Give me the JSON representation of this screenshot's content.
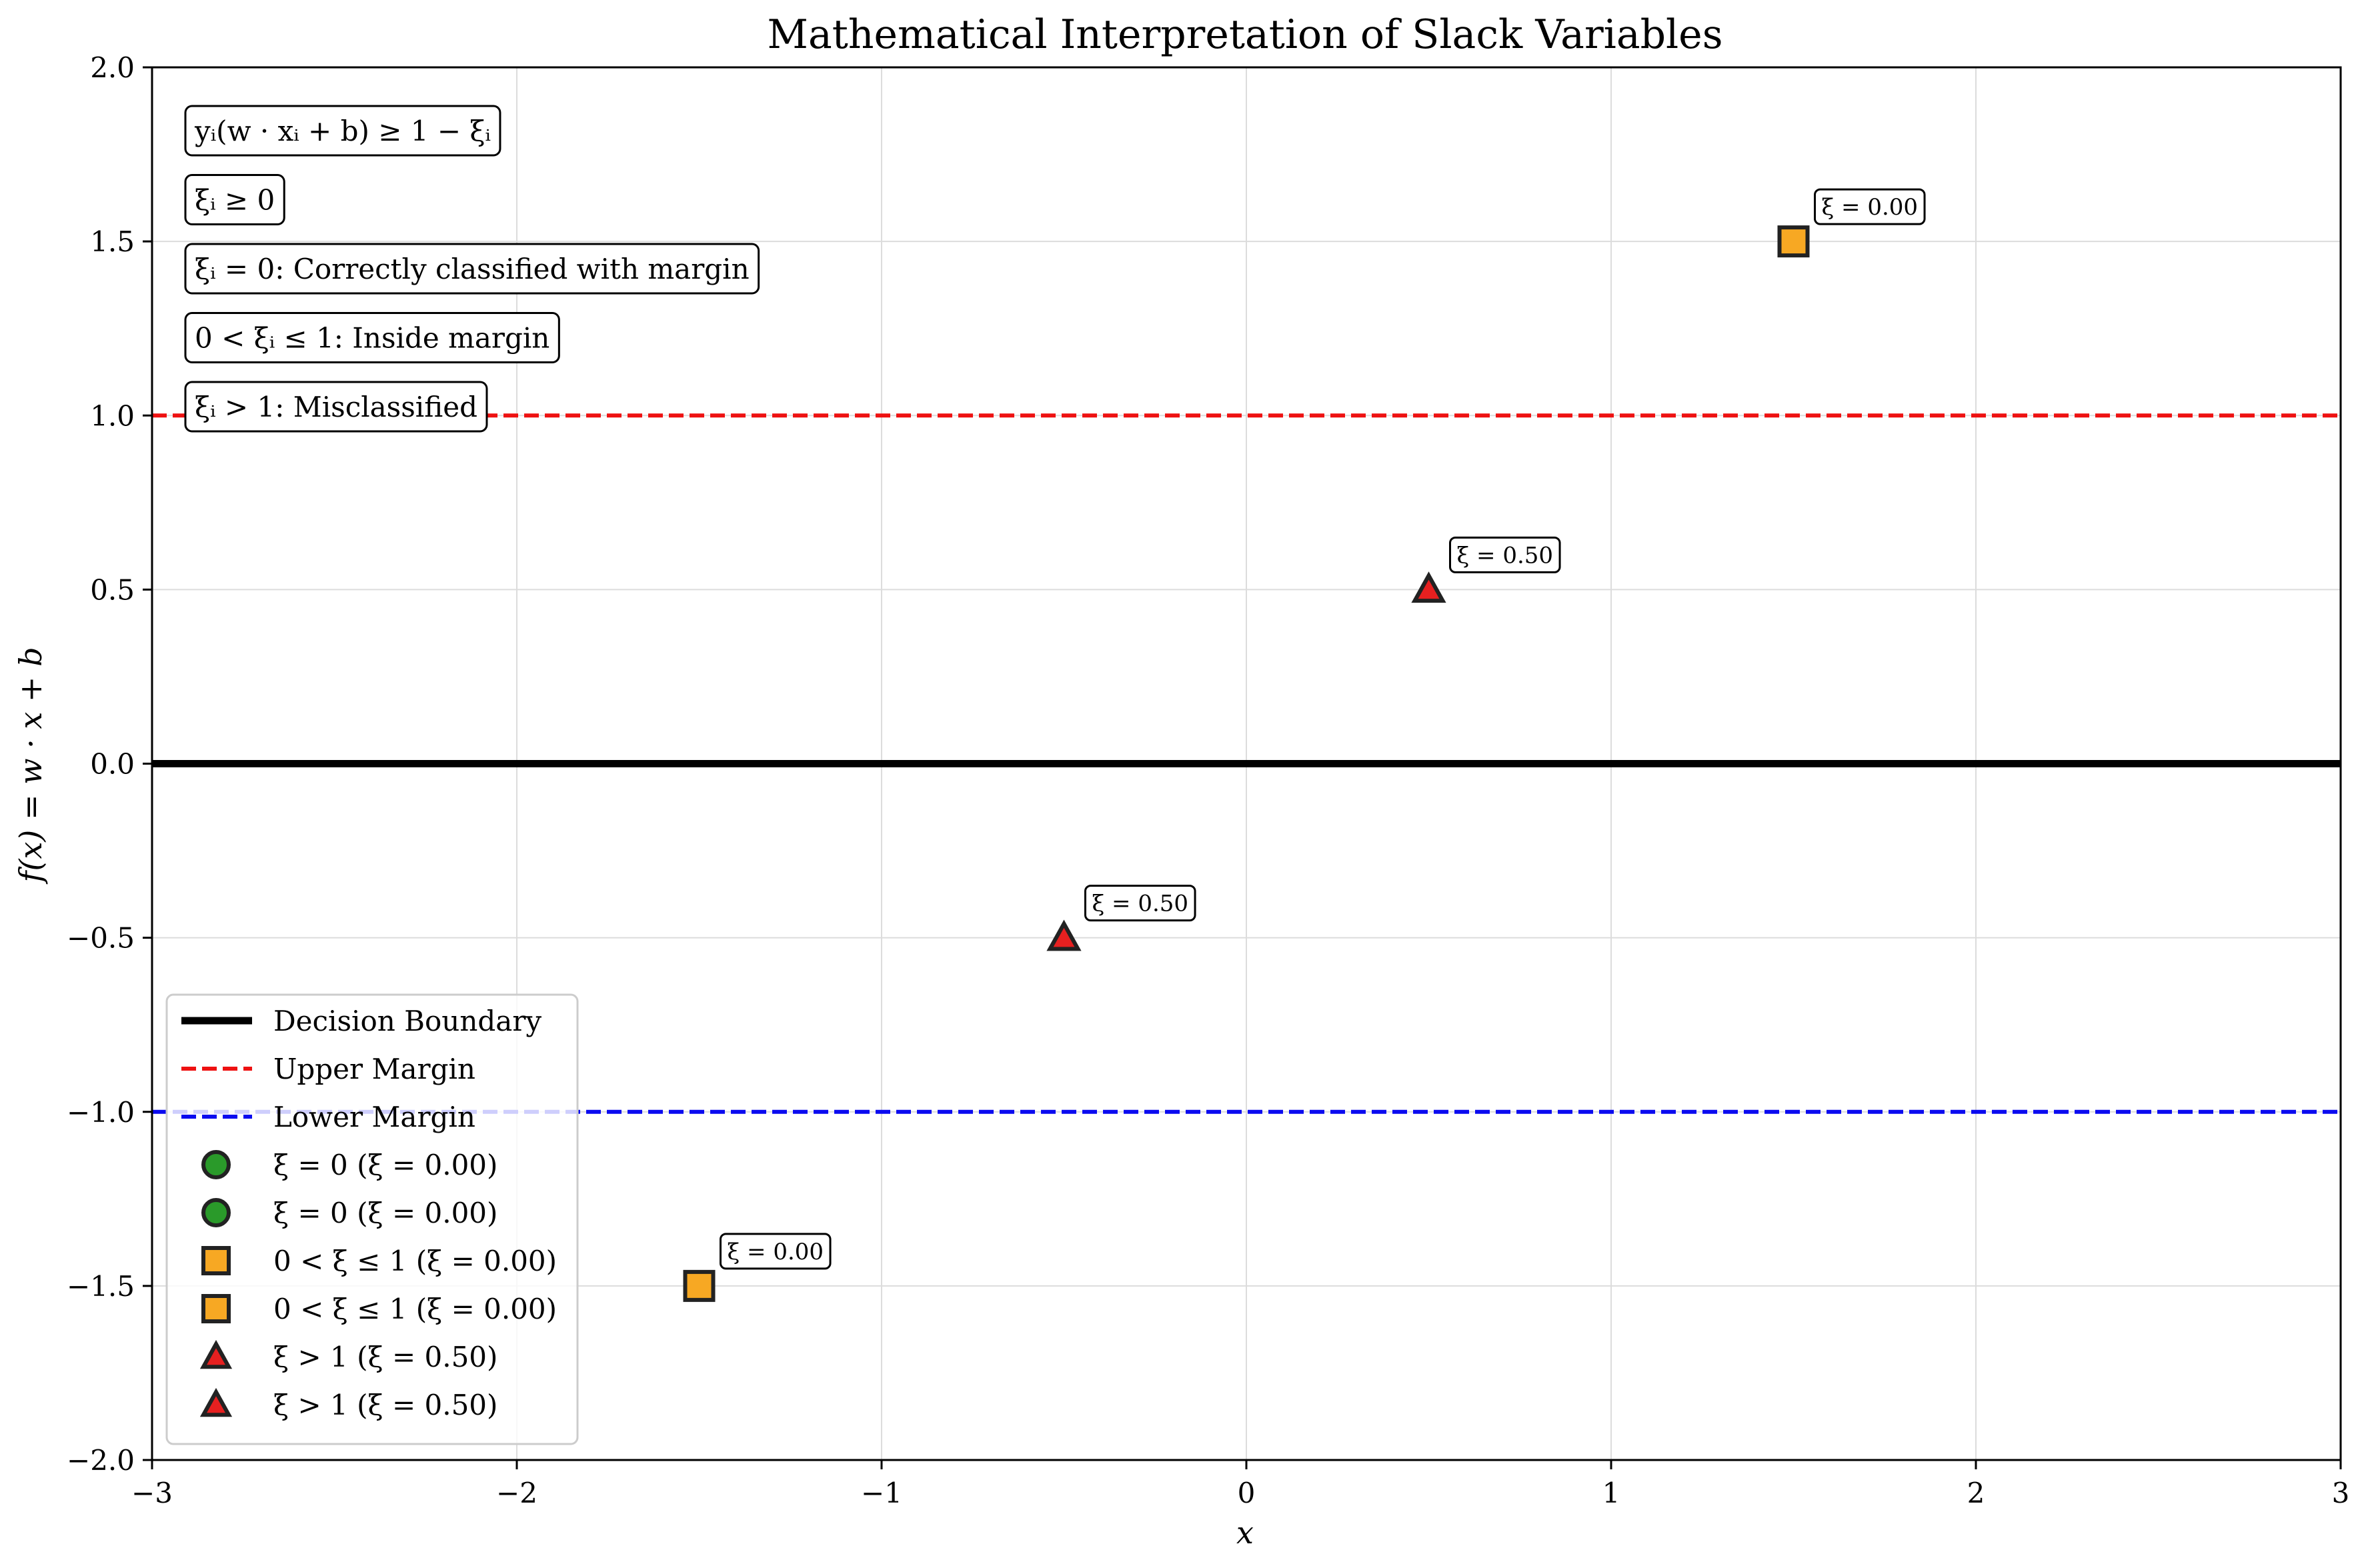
{
  "chart_data": {
    "type": "scatter",
    "title": "Mathematical Interpretation of Slack Variables",
    "xlabel": "x",
    "ylabel": "f(x) = w · x + b",
    "xlim": [
      -3,
      3
    ],
    "ylim": [
      -2,
      2
    ],
    "x_ticks": [
      -3,
      -2,
      -1,
      0,
      1,
      2,
      3
    ],
    "x_tick_labels": [
      "−3",
      "−2",
      "−1",
      "0",
      "1",
      "2",
      "3"
    ],
    "y_ticks": [
      -2.0,
      -1.5,
      -1.0,
      -0.5,
      0.0,
      0.5,
      1.0,
      1.5,
      2.0
    ],
    "y_tick_labels": [
      "−2.0",
      "−1.5",
      "−1.0",
      "−0.5",
      "0.0",
      "0.5",
      "1.0",
      "1.5",
      "2.0"
    ],
    "grid": true,
    "lines": [
      {
        "name": "Decision Boundary",
        "y": 0,
        "color": "#000000",
        "style": "solid"
      },
      {
        "name": "Upper Margin",
        "y": 1,
        "color": "#ee1111",
        "style": "dashed"
      },
      {
        "name": "Lower Margin",
        "y": -1,
        "color": "#0a0af0",
        "style": "dashed"
      }
    ],
    "points": [
      {
        "x": 1.5,
        "y": 1.5,
        "marker": "square",
        "color": "#f7a823",
        "label": "ξ = 0.00"
      },
      {
        "x": -1.5,
        "y": -1.5,
        "marker": "square",
        "color": "#f7a823",
        "label": "ξ = 0.00"
      },
      {
        "x": 0.5,
        "y": 0.5,
        "marker": "triangle",
        "color": "#e62020",
        "label": "ξ = 0.50"
      },
      {
        "x": -0.5,
        "y": -0.5,
        "marker": "triangle",
        "color": "#e62020",
        "label": "ξ = 0.50"
      }
    ],
    "annotations": [
      "yᵢ(w · xᵢ + b) ≥ 1 − ξᵢ",
      "ξᵢ ≥ 0",
      "ξᵢ = 0: Correctly classified with margin",
      "0 < ξᵢ ≤ 1: Inside margin",
      "ξᵢ > 1: Misclassified"
    ],
    "legend": {
      "placement": "lower-left",
      "entries": [
        {
          "label": "Decision Boundary",
          "kind": "line",
          "color": "#000000",
          "style": "solid"
        },
        {
          "label": "Upper Margin",
          "kind": "line",
          "color": "#ee1111",
          "style": "dashed"
        },
        {
          "label": "Lower Margin",
          "kind": "line",
          "color": "#0a0af0",
          "style": "dashed"
        },
        {
          "label": "ξ = 0 (ξ = 0.00)",
          "kind": "circle",
          "color": "#2a9a2a"
        },
        {
          "label": "ξ = 0 (ξ = 0.00)",
          "kind": "circle",
          "color": "#2a9a2a"
        },
        {
          "label": "0 < ξ ≤ 1 (ξ = 0.00)",
          "kind": "square",
          "color": "#f7a823"
        },
        {
          "label": "0 < ξ ≤ 1 (ξ = 0.00)",
          "kind": "square",
          "color": "#f7a823"
        },
        {
          "label": "ξ > 1 (ξ = 0.50)",
          "kind": "triangle",
          "color": "#e62020"
        },
        {
          "label": "ξ > 1 (ξ = 0.50)",
          "kind": "triangle",
          "color": "#e62020"
        }
      ]
    }
  }
}
